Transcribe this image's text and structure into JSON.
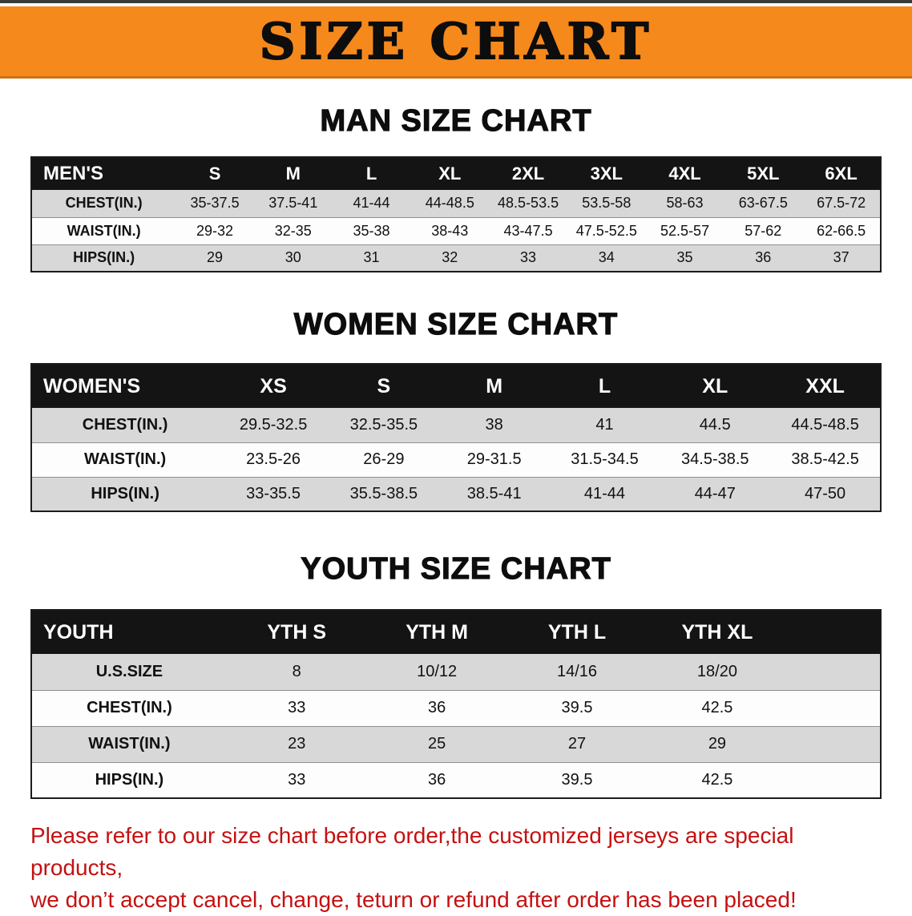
{
  "banner": {
    "title": "SIZE CHART"
  },
  "colors": {
    "banner_bg": "#F6891C",
    "header_bg": "#141414",
    "row_alt": "#D8D8D8",
    "disclaimer": "#C41111"
  },
  "sections": [
    {
      "id": "men",
      "heading": "MAN SIZE CHART",
      "table": {
        "header": [
          "MEN'S",
          "S",
          "M",
          "L",
          "XL",
          "2XL",
          "3XL",
          "4XL",
          "5XL",
          "6XL"
        ],
        "rows": [
          [
            "CHEST(IN.)",
            "35-37.5",
            "37.5-41",
            "41-44",
            "44-48.5",
            "48.5-53.5",
            "53.5-58",
            "58-63",
            "63-67.5",
            "67.5-72"
          ],
          [
            "WAIST(IN.)",
            "29-32",
            "32-35",
            "35-38",
            "38-43",
            "43-47.5",
            "47.5-52.5",
            "52.5-57",
            "57-62",
            "62-66.5"
          ],
          [
            "HIPS(IN.)",
            "29",
            "30",
            "31",
            "32",
            "33",
            "34",
            "35",
            "36",
            "37"
          ]
        ]
      }
    },
    {
      "id": "women",
      "heading": "WOMEN SIZE CHART",
      "table": {
        "header": [
          "WOMEN'S",
          "XS",
          "S",
          "M",
          "L",
          "XL",
          "XXL"
        ],
        "rows": [
          [
            "CHEST(IN.)",
            "29.5-32.5",
            "32.5-35.5",
            "38",
            "41",
            "44.5",
            "44.5-48.5"
          ],
          [
            "WAIST(IN.)",
            "23.5-26",
            "26-29",
            "29-31.5",
            "31.5-34.5",
            "34.5-38.5",
            "38.5-42.5"
          ],
          [
            "HIPS(IN.)",
            "33-35.5",
            "35.5-38.5",
            "38.5-41",
            "41-44",
            "44-47",
            "47-50"
          ]
        ]
      }
    },
    {
      "id": "youth",
      "heading": "YOUTH SIZE CHART",
      "table": {
        "header": [
          "YOUTH",
          "YTH S",
          "YTH M",
          "YTH L",
          "YTH XL"
        ],
        "rows": [
          [
            "U.S.SIZE",
            "8",
            "10/12",
            "14/16",
            "18/20"
          ],
          [
            "CHEST(IN.)",
            "33",
            "36",
            "39.5",
            "42.5"
          ],
          [
            "WAIST(IN.)",
            "23",
            "25",
            "27",
            "29"
          ],
          [
            "HIPS(IN.)",
            "33",
            "36",
            "39.5",
            "42.5"
          ]
        ]
      }
    }
  ],
  "disclaimer": {
    "line1": "Please refer to our size chart before order,the customized jerseys are special products,",
    "line2": "we don’t accept cancel, change, teturn or refund after order has been placed!"
  }
}
